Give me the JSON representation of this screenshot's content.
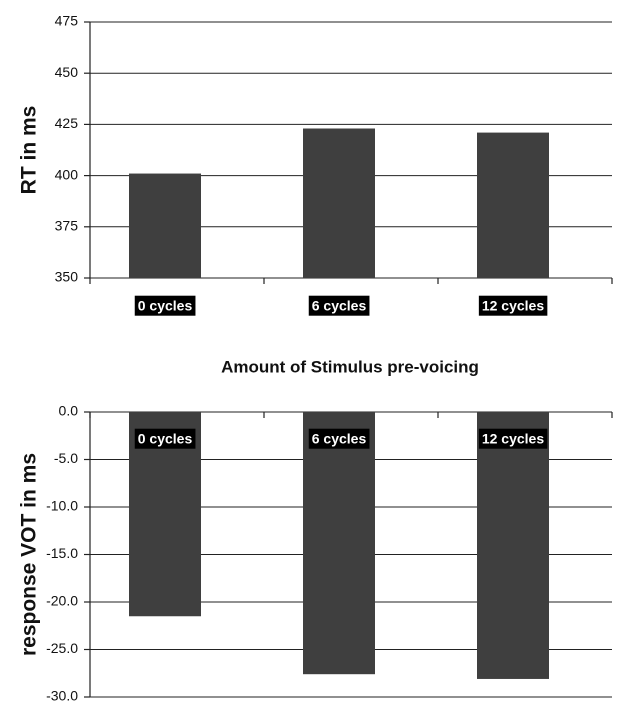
{
  "chart_data": [
    {
      "type": "bar",
      "y_label": "RT in ms",
      "x_label": "Amount of Stimulus pre-voicing",
      "categories": [
        "0 cycles",
        "6 cycles",
        "12 cycles"
      ],
      "values": [
        401,
        423,
        421
      ],
      "color": "#3f3f3f",
      "ylim": [
        350,
        475
      ],
      "yticks": [
        350,
        375,
        400,
        425,
        450,
        475
      ],
      "grid": true
    },
    {
      "type": "bar",
      "y_label": "response VOT in ms",
      "categories": [
        "0 cycles",
        "6 cycles",
        "12 cycles"
      ],
      "values": [
        -21.5,
        -27.6,
        -28.1
      ],
      "color": "#3f3f3f",
      "ylim": [
        -30,
        0
      ],
      "yticks": [
        {
          "value": -30,
          "label": "-30.0"
        },
        {
          "value": -25,
          "label": "-25.0"
        },
        {
          "value": -20,
          "label": "-20.0"
        },
        {
          "value": -15,
          "label": "-15.0"
        },
        {
          "value": -10,
          "label": "-10.0"
        },
        {
          "value": -5,
          "label": "-5.0"
        },
        {
          "value": 0,
          "label": "0.0"
        }
      ],
      "grid": true
    }
  ]
}
